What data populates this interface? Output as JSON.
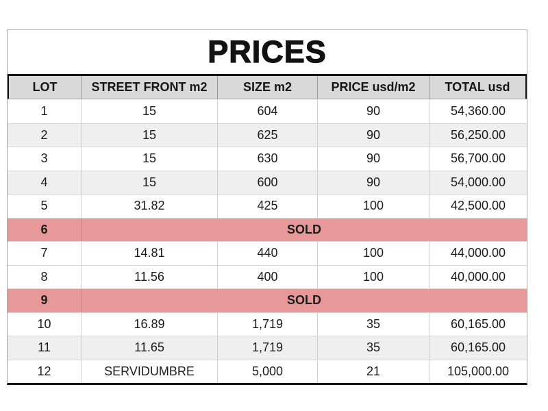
{
  "page": {
    "title": "PRICES"
  },
  "colors": {
    "header_bg": "#d9d9d9",
    "band_row_bg": "#efefef",
    "sold_row_bg": "#e79899",
    "border_black": "#161616",
    "grid_line": "#cfcfcf",
    "outer_border": "#a8a8a8"
  },
  "table": {
    "columns": [
      "LOT",
      "STREET FRONT m2",
      "SIZE m2",
      "PRICE usd/m2",
      "TOTAL usd"
    ],
    "sold_label": "SOLD",
    "rows": [
      {
        "lot": "1",
        "bg": "white",
        "cells": [
          "15",
          "604",
          "90",
          "54,360.00"
        ]
      },
      {
        "lot": "2",
        "bg": "band",
        "cells": [
          "15",
          "625",
          "90",
          "56,250.00"
        ]
      },
      {
        "lot": "3",
        "bg": "white",
        "cells": [
          "15",
          "630",
          "90",
          "56,700.00"
        ]
      },
      {
        "lot": "4",
        "bg": "band",
        "cells": [
          "15",
          "600",
          "90",
          "54,000.00"
        ]
      },
      {
        "lot": "5",
        "bg": "white",
        "cells": [
          "31.82",
          "425",
          "100",
          "42,500.00"
        ]
      },
      {
        "lot": "6",
        "bg": "sold",
        "merged": "SOLD"
      },
      {
        "lot": "7",
        "bg": "white",
        "cells": [
          "14.81",
          "440",
          "100",
          "44,000.00"
        ]
      },
      {
        "lot": "8",
        "bg": "white",
        "cells": [
          "11.56",
          "400",
          "100",
          "40,000.00"
        ]
      },
      {
        "lot": "9",
        "bg": "sold",
        "merged": "SOLD"
      },
      {
        "lot": "10",
        "bg": "white",
        "cells": [
          "16.89",
          "1,719",
          "35",
          "60,165.00"
        ]
      },
      {
        "lot": "11",
        "bg": "band",
        "cells": [
          "11.65",
          "1,719",
          "35",
          "60,165.00"
        ]
      },
      {
        "lot": "12",
        "bg": "white",
        "cells": [
          "SERVIDUMBRE",
          "5,000",
          "21",
          "105,000.00"
        ]
      }
    ]
  }
}
